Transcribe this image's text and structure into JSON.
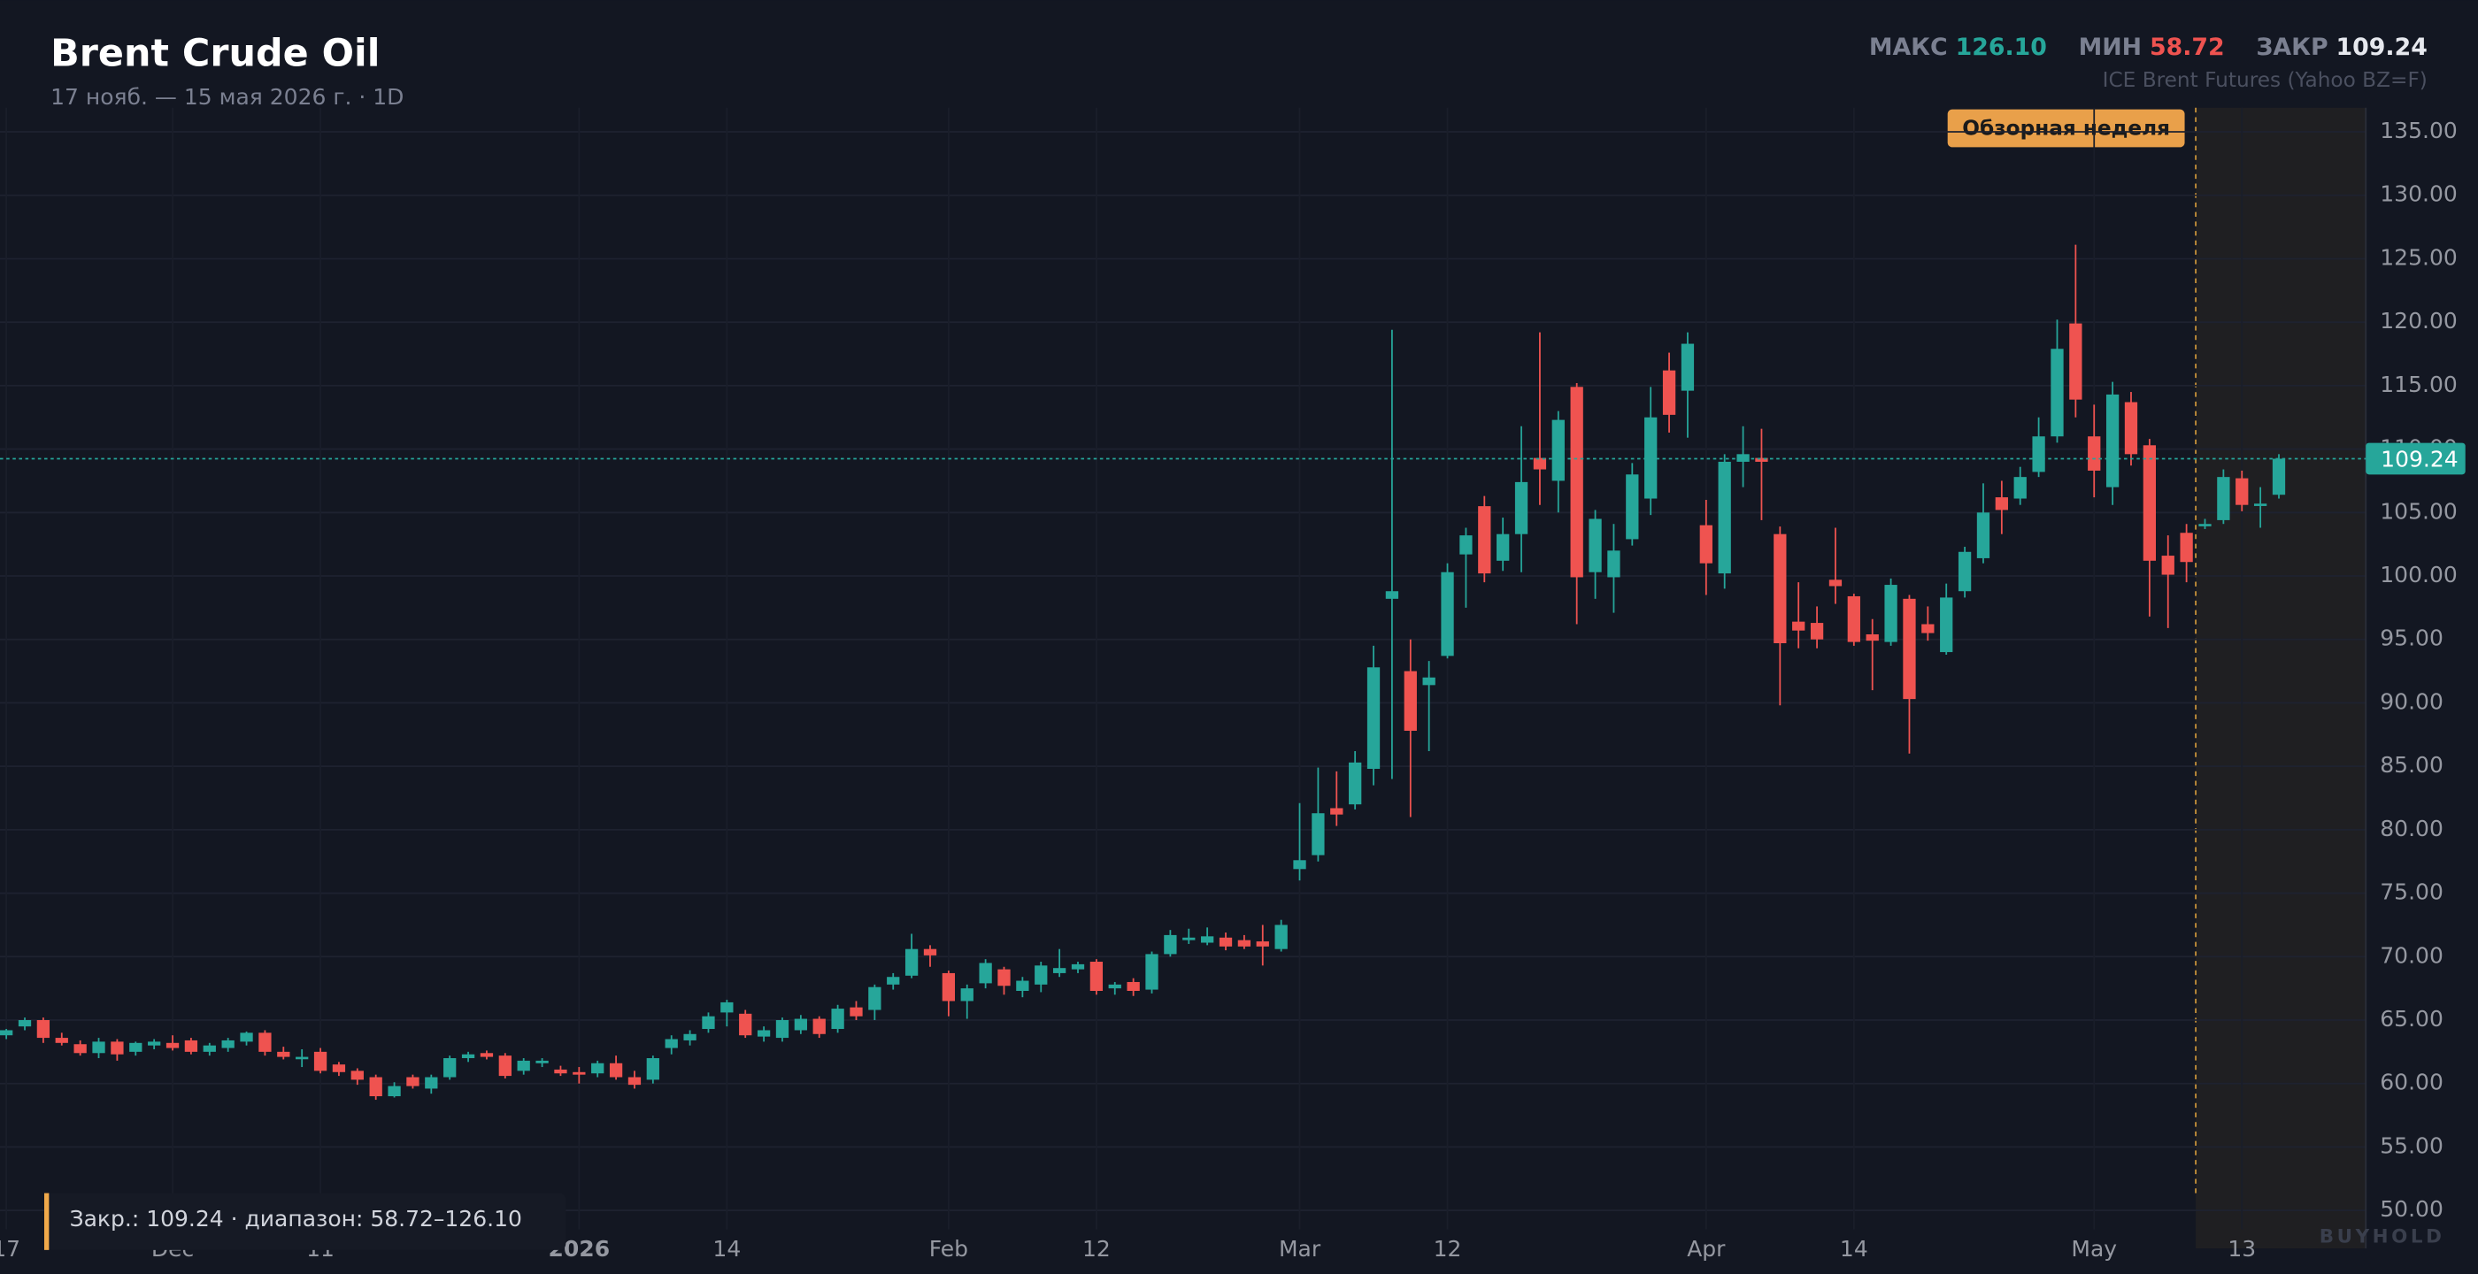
{
  "header": {
    "title": "Brent Crude Oil",
    "subtitle": "17 нояб. — 15 мая 2026 г. · 1D",
    "source": "ICE Brent Futures (Yahoo BZ=F)",
    "stats": [
      {
        "name": "МАКС",
        "value": 126.1,
        "value_label": "126.10",
        "color": "#26a69a"
      },
      {
        "name": "МИН",
        "value": 58.72,
        "value_label": "58.72",
        "color": "#ef5350"
      },
      {
        "name": "ЗАКР",
        "value": 109.24,
        "value_label": "109.24",
        "color": "#e6e8ee"
      }
    ]
  },
  "footer": {
    "summary": "Закр.: 109.24 · диапазон: 58.72–126.10",
    "watermark": "BUYHOLD"
  },
  "chart_data": {
    "type": "candlestick",
    "up_color": "#26a69a",
    "down_color": "#ef5350",
    "grid": true,
    "highlight_label": "Обзорная неделя",
    "categories": [
      "17",
      null,
      null,
      null,
      null,
      null,
      null,
      null,
      null,
      "Dec",
      null,
      null,
      null,
      null,
      null,
      null,
      null,
      "11",
      null,
      null,
      null,
      null,
      null,
      null,
      null,
      null,
      null,
      null,
      null,
      null,
      null,
      "2026",
      null,
      null,
      null,
      null,
      null,
      null,
      null,
      "14",
      null,
      null,
      null,
      null,
      null,
      null,
      null,
      null,
      null,
      null,
      null,
      "Feb",
      null,
      null,
      null,
      null,
      null,
      null,
      null,
      "12",
      null,
      null,
      null,
      null,
      null,
      null,
      null,
      null,
      null,
      null,
      "Mar",
      null,
      null,
      null,
      null,
      null,
      null,
      null,
      "12",
      null,
      null,
      null,
      null,
      null,
      null,
      null,
      null,
      null,
      null,
      null,
      null,
      null,
      "Apr",
      null,
      null,
      null,
      null,
      null,
      null,
      null,
      "14",
      null,
      null,
      null,
      null,
      null,
      null,
      null,
      null,
      null,
      null,
      null,
      null,
      "May",
      null,
      null,
      null,
      null,
      null,
      null,
      null,
      "13",
      null,
      null
    ],
    "open": [
      63.8,
      64.5,
      65.0,
      63.6,
      63.1,
      62.4,
      63.3,
      62.5,
      63.0,
      63.2,
      63.4,
      62.5,
      62.8,
      63.3,
      64.0,
      62.5,
      62.0,
      62.5,
      61.5,
      61.0,
      60.5,
      59.0,
      60.5,
      59.6,
      60.5,
      62.0,
      62.4,
      62.2,
      61.0,
      61.6,
      61.1,
      60.9,
      60.8,
      61.6,
      60.5,
      60.3,
      62.8,
      63.4,
      64.3,
      65.6,
      65.5,
      63.7,
      63.6,
      64.2,
      65.1,
      64.3,
      66.0,
      65.8,
      67.8,
      68.5,
      70.6,
      68.7,
      66.5,
      67.9,
      69.0,
      67.3,
      67.8,
      68.7,
      69.0,
      69.6,
      67.5,
      68.0,
      67.4,
      70.2,
      71.3,
      71.1,
      71.5,
      71.3,
      71.2,
      70.6,
      76.9,
      78.0,
      81.7,
      82.0,
      84.8,
      98.2,
      92.5,
      91.4,
      93.7,
      101.7,
      105.5,
      101.2,
      103.3,
      109.3,
      107.5,
      114.9,
      100.3,
      99.9,
      102.9,
      106.1,
      116.2,
      114.6,
      104.0,
      100.2,
      109.0,
      109.3,
      103.3,
      96.4,
      96.3,
      99.7,
      98.4,
      95.4,
      94.8,
      98.2,
      96.2,
      94.0,
      98.8,
      101.4,
      106.2,
      106.1,
      108.2,
      111.0,
      119.9,
      111.0,
      107.0,
      113.7,
      110.3,
      101.6,
      103.4,
      104.0,
      104.4,
      107.7,
      105.6,
      106.4
    ],
    "high": [
      64.3,
      65.2,
      65.2,
      64.0,
      63.4,
      63.6,
      63.5,
      63.3,
      63.5,
      63.8,
      63.6,
      63.2,
      63.6,
      64.1,
      64.2,
      62.9,
      62.7,
      62.8,
      61.7,
      61.2,
      60.7,
      60.1,
      60.7,
      60.7,
      62.2,
      62.5,
      62.6,
      62.4,
      62.0,
      62.0,
      61.4,
      61.3,
      61.8,
      62.2,
      61.0,
      62.2,
      63.8,
      64.2,
      65.6,
      66.6,
      65.8,
      64.5,
      65.2,
      65.4,
      65.3,
      66.2,
      66.5,
      67.8,
      68.7,
      71.8,
      70.9,
      68.9,
      67.8,
      69.8,
      69.2,
      68.4,
      69.6,
      70.6,
      69.6,
      69.8,
      68.0,
      68.3,
      70.4,
      72.1,
      72.2,
      72.3,
      71.9,
      71.7,
      72.5,
      72.9,
      82.1,
      84.9,
      84.6,
      86.2,
      94.5,
      119.4,
      95.0,
      93.3,
      101.0,
      103.8,
      106.3,
      104.6,
      111.8,
      119.2,
      113.0,
      115.2,
      105.2,
      104.1,
      108.9,
      114.9,
      117.6,
      119.2,
      106.0,
      109.6,
      111.8,
      111.6,
      103.9,
      99.5,
      97.6,
      103.8,
      98.6,
      96.6,
      99.8,
      98.5,
      97.6,
      99.4,
      102.3,
      107.3,
      107.5,
      108.6,
      112.5,
      120.2,
      126.1,
      113.5,
      115.3,
      114.5,
      110.8,
      103.2,
      104.1,
      104.5,
      108.4,
      108.3,
      107.0,
      109.6
    ],
    "low": [
      63.5,
      64.2,
      63.2,
      63.0,
      62.2,
      62.0,
      61.8,
      62.2,
      62.7,
      62.6,
      62.3,
      62.2,
      62.5,
      63.0,
      62.2,
      61.9,
      61.3,
      60.8,
      60.6,
      59.9,
      58.72,
      58.9,
      59.6,
      59.2,
      60.3,
      61.7,
      61.9,
      60.4,
      60.7,
      61.3,
      60.6,
      60.0,
      60.5,
      60.3,
      59.6,
      60.0,
      62.3,
      63.0,
      64.0,
      64.5,
      63.6,
      63.3,
      63.3,
      63.9,
      63.6,
      64.0,
      65.0,
      65.0,
      67.4,
      68.3,
      69.2,
      65.3,
      65.1,
      67.5,
      67.0,
      66.8,
      67.2,
      68.4,
      68.7,
      67.0,
      67.0,
      66.9,
      67.1,
      70.0,
      71.0,
      70.9,
      70.5,
      70.6,
      69.3,
      70.4,
      76.0,
      77.5,
      80.3,
      81.6,
      83.5,
      84.0,
      81.0,
      86.2,
      93.5,
      97.5,
      99.5,
      100.4,
      100.3,
      105.6,
      105.0,
      96.2,
      98.2,
      97.1,
      102.4,
      104.8,
      111.3,
      110.9,
      98.5,
      99.0,
      107.0,
      104.4,
      89.8,
      94.3,
      94.3,
      97.8,
      94.5,
      91.0,
      94.5,
      86.0,
      94.9,
      93.8,
      98.3,
      101.0,
      103.3,
      105.6,
      107.8,
      110.5,
      112.5,
      106.2,
      105.6,
      108.7,
      96.8,
      95.9,
      99.5,
      103.7,
      104.1,
      105.1,
      103.8,
      106.1
    ],
    "close": [
      64.2,
      65.0,
      63.6,
      63.2,
      62.4,
      63.3,
      62.3,
      63.2,
      63.3,
      62.8,
      62.5,
      63.0,
      63.4,
      64.0,
      62.5,
      62.1,
      62.1,
      61.0,
      60.9,
      60.3,
      59.0,
      59.8,
      59.8,
      60.5,
      62.0,
      62.3,
      62.1,
      60.6,
      61.8,
      61.8,
      60.8,
      60.7,
      61.6,
      60.5,
      59.9,
      62.0,
      63.5,
      63.9,
      65.3,
      66.4,
      63.8,
      64.2,
      65.0,
      65.1,
      63.9,
      65.9,
      65.3,
      67.6,
      68.4,
      70.6,
      70.1,
      66.5,
      67.5,
      69.5,
      67.7,
      68.1,
      69.3,
      69.1,
      69.4,
      67.3,
      67.8,
      67.3,
      70.2,
      71.7,
      71.5,
      71.6,
      70.8,
      70.8,
      70.8,
      72.5,
      77.6,
      81.3,
      81.2,
      85.3,
      92.8,
      98.8,
      87.8,
      92.0,
      100.3,
      103.2,
      100.2,
      103.3,
      107.4,
      108.4,
      112.3,
      99.9,
      104.5,
      102.0,
      108.0,
      112.5,
      112.7,
      118.3,
      101.0,
      109.0,
      109.6,
      109.0,
      94.7,
      95.7,
      95.0,
      99.2,
      94.8,
      94.9,
      99.3,
      90.3,
      95.5,
      98.3,
      101.9,
      105.0,
      105.2,
      107.8,
      111.0,
      117.9,
      113.9,
      108.3,
      114.3,
      109.6,
      101.2,
      100.1,
      101.1,
      104.1,
      107.8,
      105.6,
      105.7,
      109.24
    ],
    "ylim": [
      48.5,
      136.9
    ],
    "yticks": [
      {
        "value": 50,
        "label": "50.00"
      },
      {
        "value": 55,
        "label": "55.00"
      },
      {
        "value": 60,
        "label": "60.00"
      },
      {
        "value": 65,
        "label": "65.00"
      },
      {
        "value": 70,
        "label": "70.00"
      },
      {
        "value": 75,
        "label": "75.00"
      },
      {
        "value": 80,
        "label": "80.00"
      },
      {
        "value": 85,
        "label": "85.00"
      },
      {
        "value": 90,
        "label": "90.00"
      },
      {
        "value": 95,
        "label": "95.00"
      },
      {
        "value": 100,
        "label": "100.00"
      },
      {
        "value": 105,
        "label": "105.00"
      },
      {
        "value": 110,
        "label": "110.00"
      },
      {
        "value": 115,
        "label": "115.00"
      },
      {
        "value": 120,
        "label": "120.00"
      },
      {
        "value": 125,
        "label": "125.00"
      },
      {
        "value": 130,
        "label": "130.00"
      },
      {
        "value": 135,
        "label": "135.00"
      }
    ]
  }
}
